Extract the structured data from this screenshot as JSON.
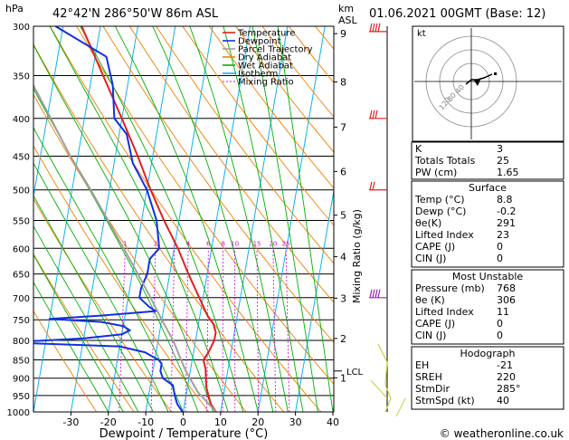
{
  "header": {
    "units_p": "hPa",
    "location": "42°42'N  286°50'W  86m  ASL",
    "units_h1": "km",
    "units_h2": "ASL",
    "datetime": "01.06.2021  00GMT  (Base: 12)"
  },
  "legend": [
    {
      "label": "Temperature",
      "color": "#e02020"
    },
    {
      "label": "Dewpoint",
      "color": "#1030e0"
    },
    {
      "label": "Parcel Trajectory",
      "color": "#a0a0a0"
    },
    {
      "label": "Dry Adiabat",
      "color": "#f08000"
    },
    {
      "label": "Wet Adiabat",
      "color": "#00b000"
    },
    {
      "label": "Isotherm",
      "color": "#10b0f0"
    },
    {
      "label": "Mixing Ratio",
      "color": "#e000e0"
    }
  ],
  "hodograph": {
    "label": "kt",
    "ring_labels": [
      "40",
      "80",
      "120"
    ]
  },
  "indices": {
    "rows": [
      {
        "k": "K",
        "v": "3"
      },
      {
        "k": "Totals Totals",
        "v": "25"
      },
      {
        "k": "PW (cm)",
        "v": "1.65"
      }
    ]
  },
  "surface": {
    "title": "Surface",
    "rows": [
      {
        "k": "Temp (°C)",
        "v": "8.8"
      },
      {
        "k": "Dewp (°C)",
        "v": "-0.2"
      },
      {
        "k": "θe(K)",
        "v": "291"
      },
      {
        "k": "Lifted Index",
        "v": "23"
      },
      {
        "k": "CAPE (J)",
        "v": "0"
      },
      {
        "k": "CIN (J)",
        "v": "0"
      }
    ]
  },
  "most_unstable": {
    "title": "Most Unstable",
    "rows": [
      {
        "k": "Pressure (mb)",
        "v": "768"
      },
      {
        "k": "θe (K)",
        "v": "306"
      },
      {
        "k": "Lifted Index",
        "v": "11"
      },
      {
        "k": "CAPE (J)",
        "v": "0"
      },
      {
        "k": "CIN (J)",
        "v": "0"
      }
    ]
  },
  "hodograph_table": {
    "title": "Hodograph",
    "rows": [
      {
        "k": "EH",
        "v": "-21"
      },
      {
        "k": "SREH",
        "v": "220"
      },
      {
        "k": "StmDir",
        "v": "285°"
      },
      {
        "k": "StmSpd (kt)",
        "v": "40"
      }
    ]
  },
  "footer": {
    "copyright": "© weatheronline.co.uk"
  },
  "chart_data": {
    "type": "line",
    "title": "",
    "xlabel": "Dewpoint / Temperature (°C)",
    "ylabel": "hPa",
    "right_axis_label": "Mixing Ratio (g/kg)",
    "xlim": [
      -35,
      40
    ],
    "x_ticks": [
      -30,
      -20,
      -10,
      0,
      10,
      20,
      30,
      40
    ],
    "pressure_levels": [
      300,
      350,
      400,
      450,
      500,
      550,
      600,
      650,
      700,
      750,
      800,
      850,
      900,
      950,
      1000
    ],
    "km_levels": [
      {
        "label": "9",
        "p": 307
      },
      {
        "label": "8",
        "p": 357
      },
      {
        "label": "7",
        "p": 411
      },
      {
        "label": "6",
        "p": 472
      },
      {
        "label": "5",
        "p": 541
      },
      {
        "label": "4",
        "p": 616
      },
      {
        "label": "3",
        "p": 701
      },
      {
        "label": "2",
        "p": 795
      },
      {
        "label": "1",
        "p": 899
      }
    ],
    "lcl": {
      "label": "LCL",
      "p": 880
    },
    "mixing_ratio_labels": [
      "1",
      "2",
      "3",
      "4",
      "6",
      "8",
      "10",
      "15",
      "20",
      "25"
    ],
    "series": [
      {
        "name": "Temperature",
        "color": "#e02020",
        "points": [
          [
            1000,
            8.8
          ],
          [
            975,
            7
          ],
          [
            950,
            6
          ],
          [
            925,
            5
          ],
          [
            900,
            4.5
          ],
          [
            875,
            4
          ],
          [
            850,
            3
          ],
          [
            830,
            4
          ],
          [
            800,
            5
          ],
          [
            780,
            5
          ],
          [
            760,
            4
          ],
          [
            740,
            2
          ],
          [
            700,
            -1
          ],
          [
            650,
            -5
          ],
          [
            600,
            -9
          ],
          [
            550,
            -14
          ],
          [
            500,
            -19
          ],
          [
            450,
            -24
          ],
          [
            400,
            -30
          ],
          [
            350,
            -37
          ],
          [
            300,
            -45
          ]
        ]
      },
      {
        "name": "Dewpoint",
        "color": "#1030e0",
        "points": [
          [
            1000,
            -0.2
          ],
          [
            975,
            -2
          ],
          [
            950,
            -3
          ],
          [
            920,
            -4
          ],
          [
            900,
            -7
          ],
          [
            880,
            -8
          ],
          [
            860,
            -8
          ],
          [
            850,
            -9
          ],
          [
            830,
            -13
          ],
          [
            815,
            -20
          ],
          [
            805,
            -50
          ],
          [
            795,
            -30
          ],
          [
            785,
            -20
          ],
          [
            775,
            -18
          ],
          [
            765,
            -20
          ],
          [
            755,
            -26
          ],
          [
            748,
            -40
          ],
          [
            740,
            -26
          ],
          [
            730,
            -12
          ],
          [
            720,
            -14
          ],
          [
            700,
            -17
          ],
          [
            680,
            -17
          ],
          [
            650,
            -16
          ],
          [
            620,
            -16
          ],
          [
            600,
            -14
          ],
          [
            550,
            -16
          ],
          [
            500,
            -20
          ],
          [
            460,
            -25
          ],
          [
            420,
            -28
          ],
          [
            400,
            -32
          ],
          [
            360,
            -34
          ],
          [
            330,
            -37
          ],
          [
            300,
            -52
          ]
        ]
      },
      {
        "name": "Parcel Trajectory",
        "color": "#a0a0a0",
        "points": [
          [
            1000,
            8.8
          ],
          [
            940,
            3
          ],
          [
            880,
            -1.2
          ],
          [
            850,
            -3
          ],
          [
            800,
            -6
          ],
          [
            750,
            -10
          ],
          [
            700,
            -14
          ],
          [
            650,
            -18.5
          ],
          [
            600,
            -23.5
          ],
          [
            550,
            -29
          ],
          [
            500,
            -35
          ],
          [
            450,
            -42
          ],
          [
            400,
            -49
          ],
          [
            350,
            -57
          ],
          [
            300,
            -66
          ]
        ]
      }
    ]
  }
}
